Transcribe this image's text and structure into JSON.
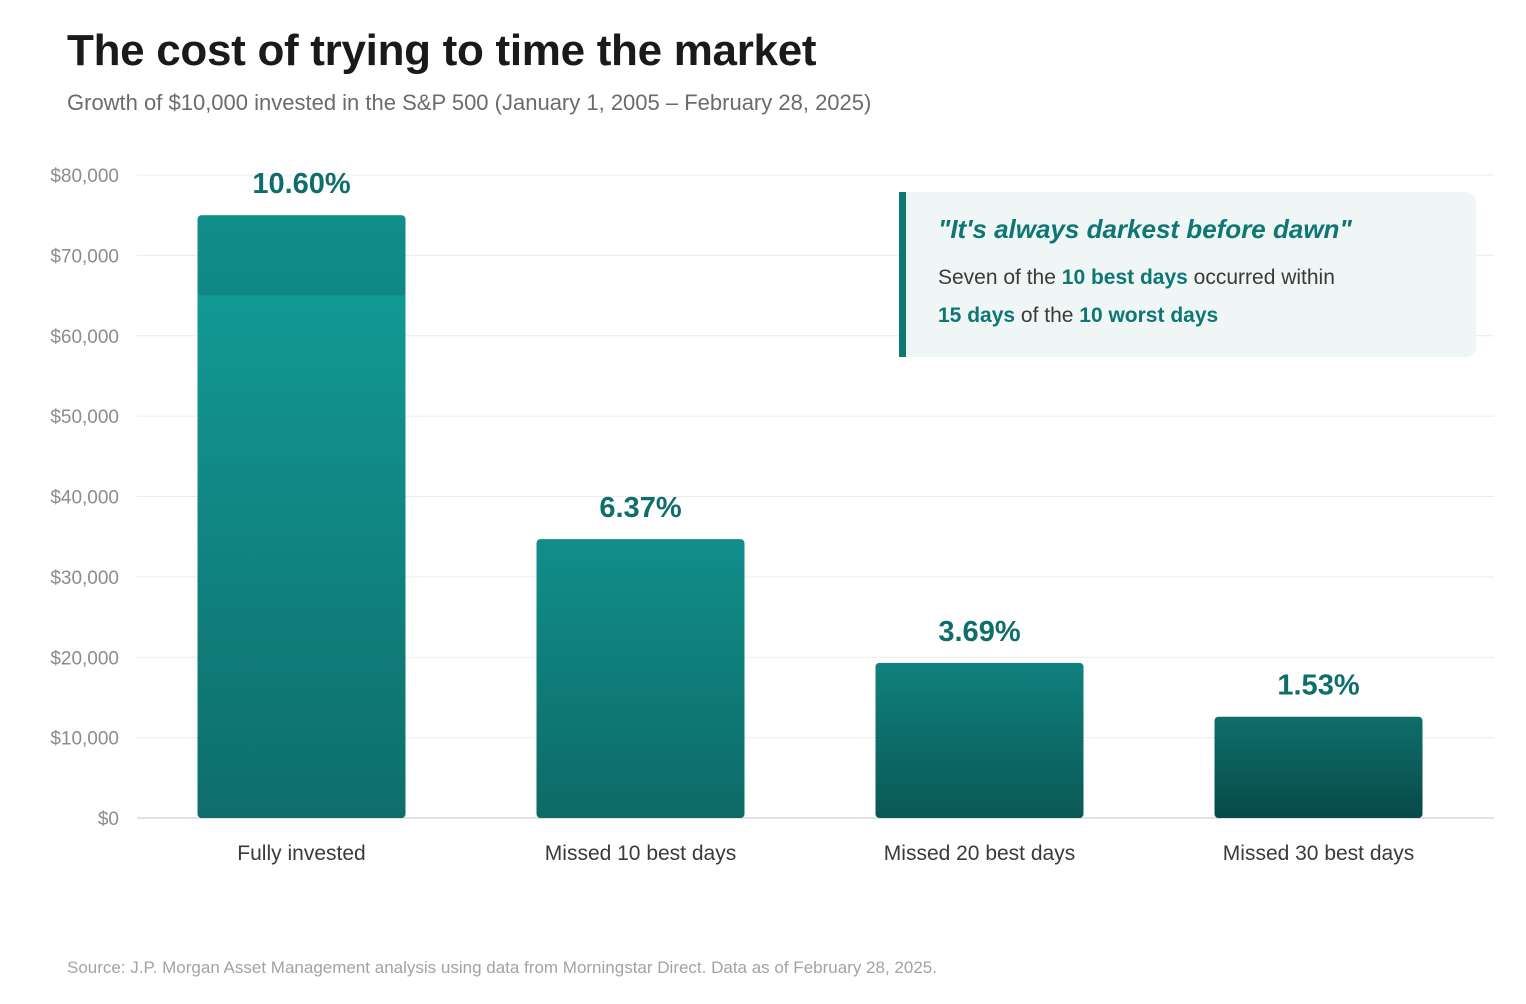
{
  "header": {
    "title": "The cost of trying to time the market",
    "subtitle": "Growth of $10,000 invested in the S&P 500 (January 1, 2005 – February 28, 2025)"
  },
  "chart_data": {
    "type": "bar",
    "categories": [
      "Fully invested",
      "Missed 10 best days",
      "Missed 20 best days",
      "Missed 30 best days"
    ],
    "values": [
      75000,
      34700,
      19300,
      12600
    ],
    "value_labels": [
      "10.60%",
      "6.37%",
      "3.69%",
      "1.53%"
    ],
    "ylim": [
      0,
      80000
    ],
    "yticks": [
      0,
      10000,
      20000,
      30000,
      40000,
      50000,
      60000,
      70000,
      80000
    ],
    "ytick_labels": [
      "$0",
      "$10,000",
      "$20,000",
      "$30,000",
      "$40,000",
      "$50,000",
      "$60,000",
      "$70,000",
      "$80,000"
    ],
    "grid": true,
    "colors": {
      "bar_top": [
        "#139f9b",
        "#118e8a",
        "#10817d",
        "#0f6e6b"
      ],
      "bar_bottom": [
        "#0e6e6b",
        "#0d6a67",
        "#0a5856",
        "#074a48"
      ],
      "value_label": "#0e6e6b",
      "grid": "#ececec",
      "axis": "#d8d8d8",
      "tick_label": "#8c8c8c",
      "category_label": "#3a3a3a"
    }
  },
  "callout": {
    "quote": "\"It's always darkest before dawn\"",
    "line1_prefix": "Seven of the ",
    "line1_highlight": "10 best days",
    "line1_suffix": " occurred within",
    "line2_highlight1": "15 days",
    "line2_middle": " of the ",
    "line2_highlight2": "10 worst days"
  },
  "footer": {
    "source": "Source: J.P. Morgan Asset Management analysis using data from Morningstar Direct. Data as of February 28, 2025."
  }
}
